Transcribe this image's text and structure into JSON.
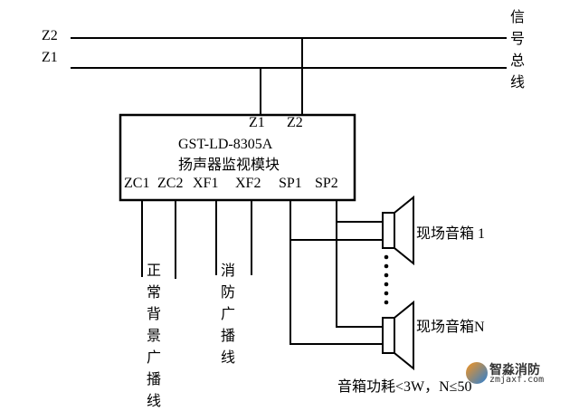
{
  "bus": {
    "z2": "Z2",
    "z1": "Z1",
    "bus_label": "信号总线"
  },
  "module": {
    "in_z1": "Z1",
    "in_z2": "Z2",
    "model": "GST-LD-8305A",
    "name": "扬声器监视模块",
    "terminals": [
      "ZC1",
      "ZC2",
      "XF1",
      "XF2",
      "SP1",
      "SP2"
    ]
  },
  "lines": {
    "normal": "正常背景广播线",
    "fire": "消防广播线"
  },
  "speakers": {
    "first": "现场音箱 1",
    "last": "现场音箱N",
    "note": "音箱功耗<3W，N≤50"
  },
  "watermark": {
    "name": "智淼消防",
    "url": "zmjaxf.com"
  }
}
